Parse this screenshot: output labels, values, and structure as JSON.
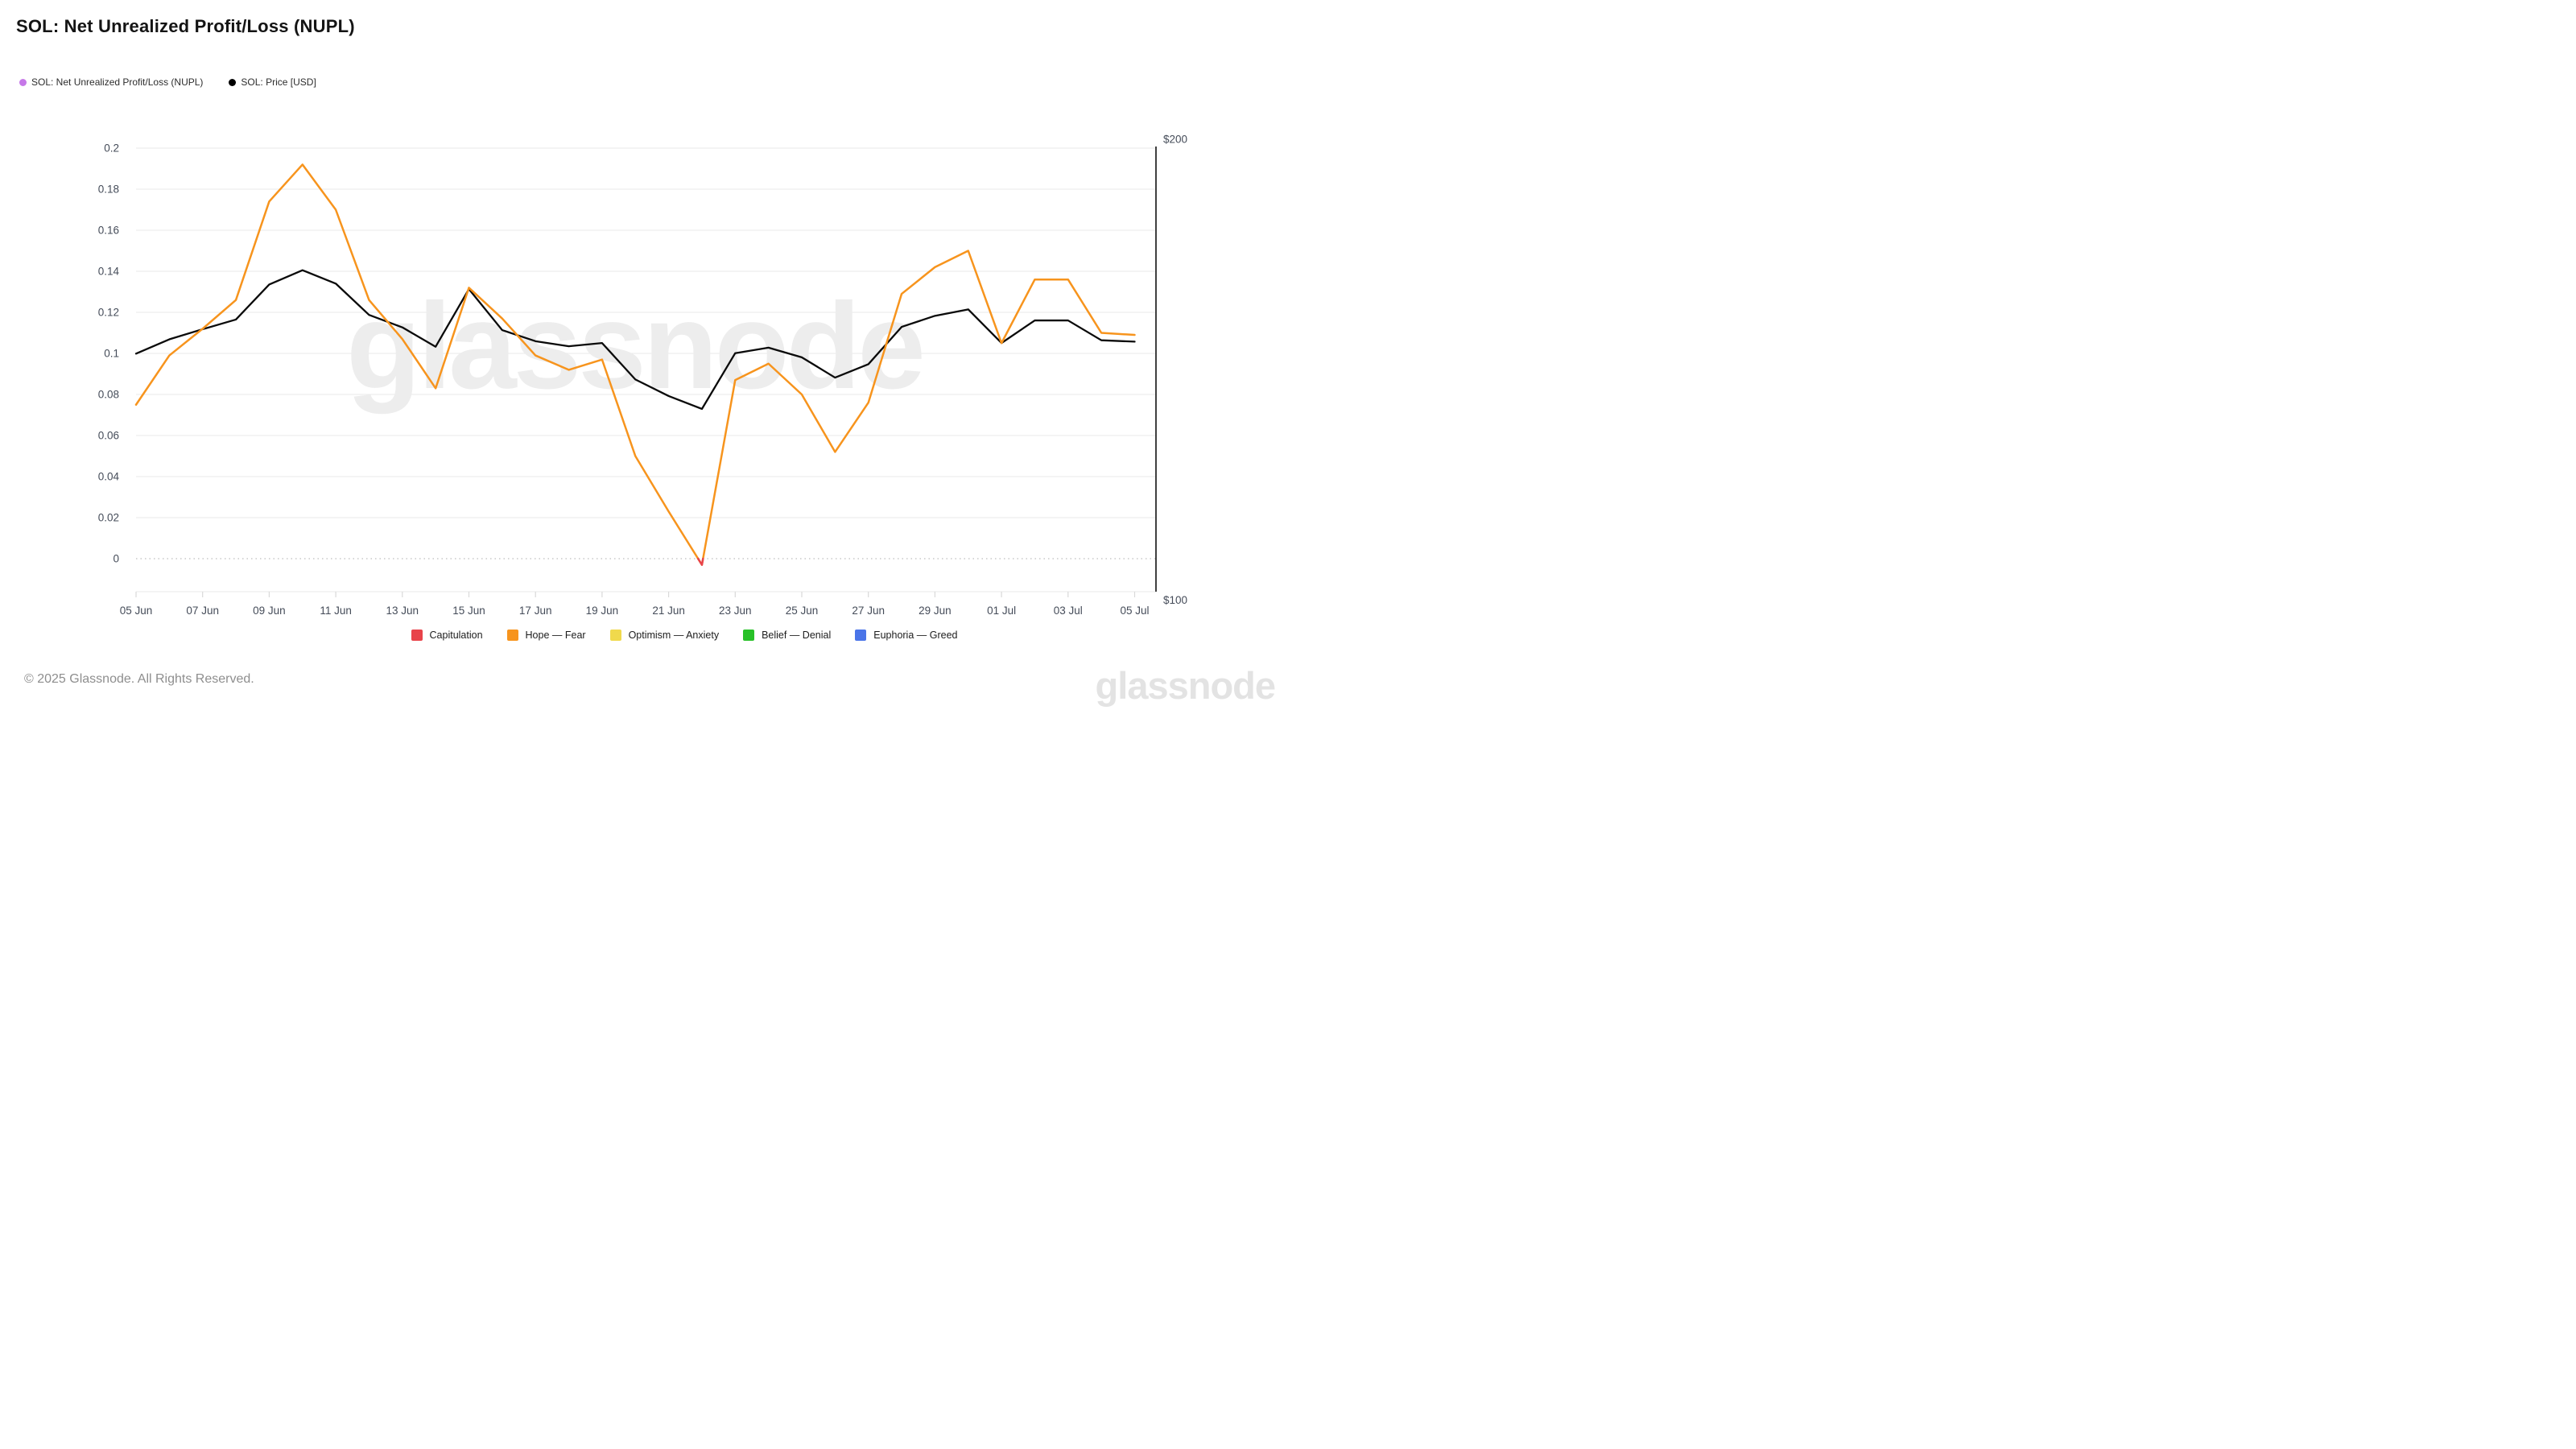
{
  "page": {
    "title": "SOL: Net Unrealized Profit/Loss (NUPL)"
  },
  "top_legend": [
    {
      "label": "SOL: Net Unrealized Profit/Loss (NUPL)",
      "color": "#c678e8"
    },
    {
      "label": "SOL: Price [USD]",
      "color": "#000000"
    }
  ],
  "watermark_center": "glassnode",
  "footer": {
    "copyright": "© 2025 Glassnode. All Rights Reserved.",
    "watermark": "glassnode"
  },
  "chart_data": {
    "type": "line",
    "title": "SOL: Net Unrealized Profit/Loss (NUPL)",
    "grid": "horizontal",
    "zero_line": "dotted",
    "legend_position": "top",
    "x": [
      "05 Jun",
      "06 Jun",
      "07 Jun",
      "08 Jun",
      "09 Jun",
      "10 Jun",
      "11 Jun",
      "12 Jun",
      "13 Jun",
      "14 Jun",
      "15 Jun",
      "16 Jun",
      "17 Jun",
      "18 Jun",
      "19 Jun",
      "20 Jun",
      "21 Jun",
      "22 Jun",
      "23 Jun",
      "24 Jun",
      "25 Jun",
      "26 Jun",
      "27 Jun",
      "28 Jun",
      "29 Jun",
      "30 Jun",
      "01 Jul",
      "02 Jul",
      "03 Jul",
      "04 Jul",
      "05 Jul"
    ],
    "x_tick_every": 2,
    "left_axis": {
      "ticks": [
        0,
        0.02,
        0.04,
        0.06,
        0.08,
        0.1,
        0.12,
        0.14,
        0.16,
        0.18,
        0.2
      ],
      "range": [
        0,
        0.2
      ]
    },
    "right_axis": {
      "ticks": [
        "$100",
        "$200"
      ],
      "range": [
        100,
        200
      ]
    },
    "series": [
      {
        "name": "SOL: Net Unrealized Profit/Loss (NUPL)",
        "axis": "left",
        "color": "#f7941d",
        "values": [
          0.075,
          0.099,
          0.112,
          0.126,
          0.174,
          0.192,
          0.17,
          0.126,
          0.107,
          0.083,
          0.132,
          0.117,
          0.099,
          0.092,
          0.097,
          0.05,
          0.023,
          -0.003,
          0.087,
          0.095,
          0.08,
          0.052,
          0.076,
          0.129,
          0.142,
          0.15,
          0.105,
          0.136,
          0.136,
          0.11,
          0.109
        ]
      },
      {
        "name": "SOL: Price [USD]",
        "axis": "right",
        "color": "#0a0a0a",
        "values": [
          153.4,
          156.5,
          158.7,
          160.8,
          168.4,
          171.5,
          168.6,
          161.8,
          159.1,
          154.9,
          167.4,
          158.5,
          156.1,
          155.0,
          155.7,
          147.8,
          144.2,
          141.4,
          153.5,
          154.7,
          152.6,
          148.2,
          151.1,
          159.2,
          161.6,
          163.0,
          155.7,
          160.6,
          160.6,
          156.3,
          156.0
        ]
      }
    ],
    "negative_color": "#e8434a",
    "bands_legend": [
      {
        "label": "Capitulation",
        "color": "#e8434a"
      },
      {
        "label": "Hope — Fear",
        "color": "#f7941d"
      },
      {
        "label": "Optimism — Anxiety",
        "color": "#f0d94c"
      },
      {
        "label": "Belief — Denial",
        "color": "#28c128"
      },
      {
        "label": "Euphoria — Greed",
        "color": "#4a74e8"
      }
    ]
  }
}
